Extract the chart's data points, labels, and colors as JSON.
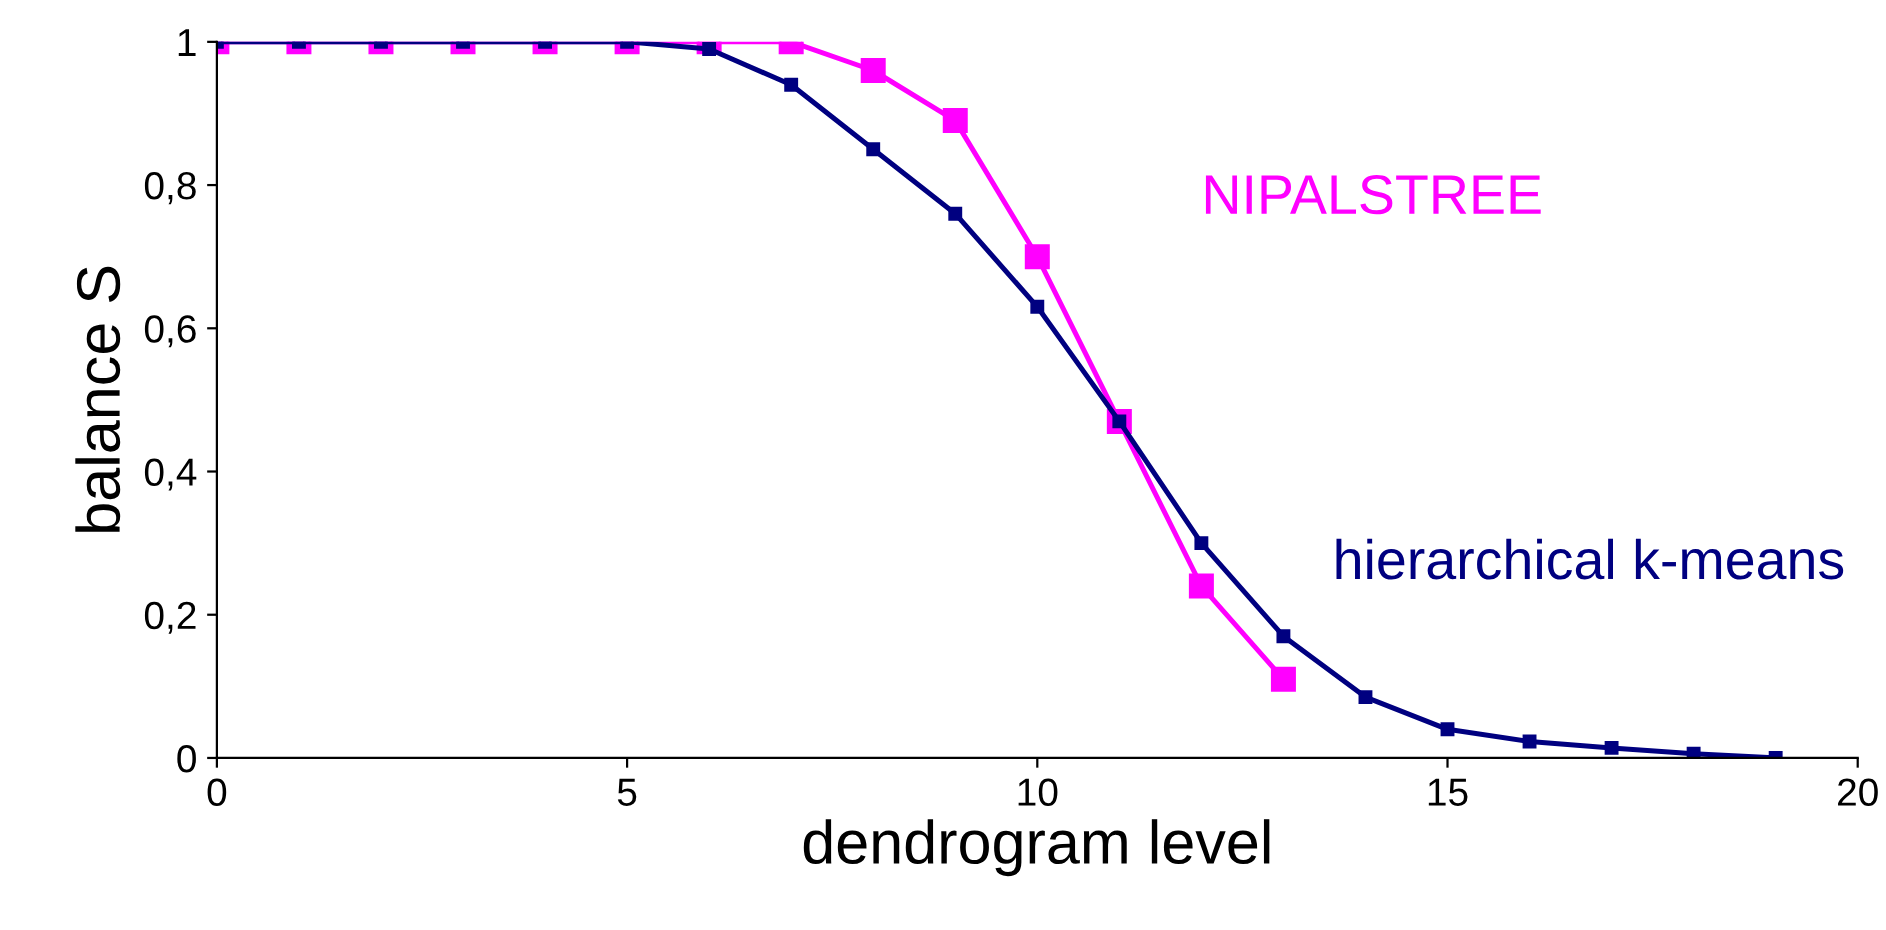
{
  "chart_data": {
    "type": "line",
    "xlabel": "dendrogram level",
    "ylabel": "balance S",
    "xlim": [
      0,
      20
    ],
    "xticks": [
      0,
      5,
      10,
      15,
      20
    ],
    "ylim": [
      0,
      1
    ],
    "yticks": [
      0,
      {
        "value": 0.2,
        "label": "0,2"
      },
      {
        "value": 0.4,
        "label": "0,4"
      },
      {
        "value": 0.6,
        "label": "0,6"
      },
      {
        "value": 0.8,
        "label": "0,8"
      },
      1
    ],
    "grid": false,
    "legend": false,
    "series": [
      {
        "name": "NIPALSTREE",
        "color": "#ff00ff",
        "marker": "square",
        "x": [
          0,
          1,
          2,
          3,
          4,
          5,
          6,
          7,
          8,
          9,
          10,
          11,
          12,
          13
        ],
        "values": [
          1,
          1,
          1,
          1,
          1,
          1,
          1,
          1,
          0.96,
          0.89,
          0.7,
          0.47,
          0.24,
          0.11
        ]
      },
      {
        "name": "hierarchical k-means",
        "color": "#000080",
        "marker": "square",
        "x": [
          0,
          1,
          2,
          3,
          4,
          5,
          6,
          7,
          8,
          9,
          10,
          11,
          12,
          13,
          14,
          15,
          16,
          17,
          18,
          19
        ],
        "values": [
          1,
          1,
          1,
          1,
          1,
          1,
          0.99,
          0.94,
          0.85,
          0.76,
          0.63,
          0.47,
          0.3,
          0.17,
          0.085,
          0.04,
          0.023,
          0.014,
          0.006,
          0
        ]
      }
    ]
  }
}
